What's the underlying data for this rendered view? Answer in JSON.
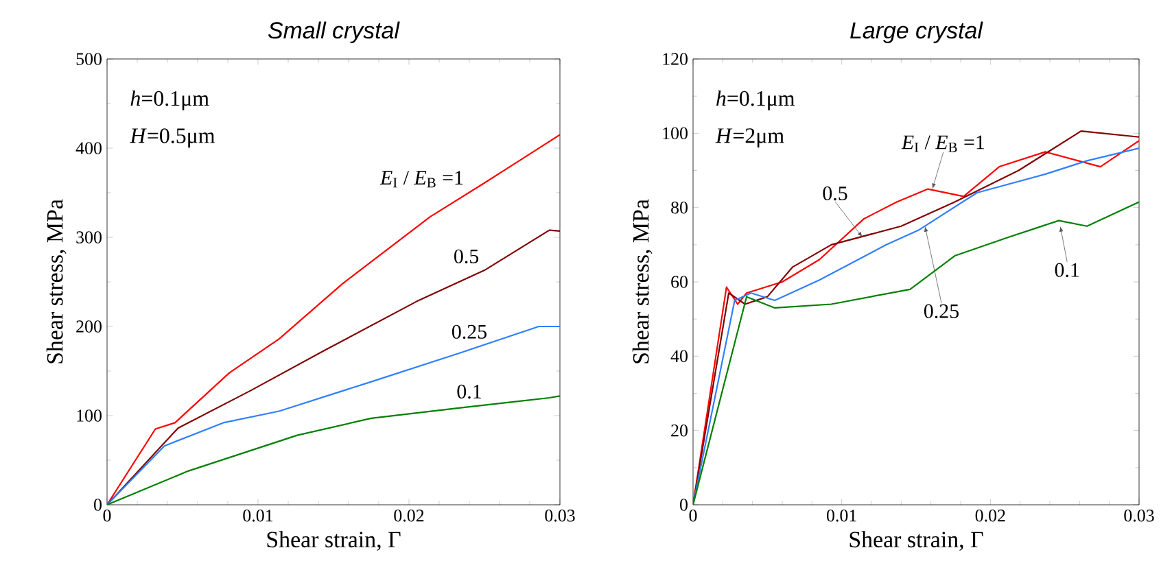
{
  "chart_data": [
    {
      "type": "line",
      "title": "Small crystal",
      "xlabel": "Shear strain,  Γ",
      "ylabel": "Shear stress, MPa",
      "xlim": [
        0,
        0.03
      ],
      "ylim": [
        0,
        500
      ],
      "xticks": [
        0,
        0.01,
        0.02,
        0.03
      ],
      "yticks": [
        0,
        100,
        200,
        300,
        400,
        500
      ],
      "marker": "none",
      "grid": false,
      "series": [
        {
          "color": "#ff0000",
          "x": [
            0,
            0.0032,
            0.0045,
            0.0081,
            0.0114,
            0.0156,
            0.0214,
            0.025,
            0.03
          ],
          "values": [
            0,
            85,
            92,
            148,
            186,
            248,
            323,
            361,
            415
          ]
        },
        {
          "color": "#800000",
          "x": [
            0,
            0.0047,
            0.0095,
            0.0145,
            0.0205,
            0.025,
            0.0293,
            0.03
          ],
          "values": [
            0,
            86,
            128,
            174,
            228,
            263,
            308,
            307
          ]
        },
        {
          "color": "#2f7fff",
          "x": [
            0,
            0.0038,
            0.0077,
            0.0114,
            0.0175,
            0.0235,
            0.0286,
            0.03
          ],
          "values": [
            0,
            66,
            92,
            105,
            138,
            171,
            200,
            200
          ]
        },
        {
          "color": "#008000",
          "x": [
            0,
            0.0054,
            0.0126,
            0.0175,
            0.0235,
            0.0293,
            0.03
          ],
          "values": [
            0,
            38,
            78,
            97,
            109,
            120,
            122
          ]
        }
      ],
      "annotations": [
        "*h*=0.1μm",
        "*H*=0.5μm",
        {
          "text": "*E*$_{I}$ / *E*$_{B}$ =1",
          "x": 0.0205,
          "y": 316
        },
        {
          "text": "0.5",
          "x": 0.0238,
          "y": 254
        },
        {
          "text": "0.25",
          "x": 0.024,
          "y": 174
        },
        {
          "text": "0.1",
          "x": 0.024,
          "y": 110
        }
      ]
    },
    {
      "type": "line",
      "title": "Large crystal",
      "xlabel": "Shear strain,  Γ",
      "ylabel": "Shear stress, MPa",
      "xlim": [
        0,
        0.03
      ],
      "ylim": [
        0,
        120
      ],
      "xticks": [
        0,
        0.01,
        0.02,
        0.03
      ],
      "yticks": [
        0,
        20,
        40,
        60,
        80,
        100,
        120
      ],
      "marker": "none",
      "grid": false,
      "series": [
        {
          "color": "#ff0000",
          "x": [
            0,
            0.00225,
            0.003,
            0.0036,
            0.006,
            0.0085,
            0.0115,
            0.0137,
            0.0158,
            0.0182,
            0.0206,
            0.0237,
            0.0274,
            0.03
          ],
          "values": [
            0,
            58.6,
            54,
            57,
            60,
            66,
            77,
            81.5,
            85,
            83,
            91,
            95,
            91,
            98
          ]
        },
        {
          "color": "#800000",
          "x": [
            0,
            0.0024,
            0.0035,
            0.005,
            0.0067,
            0.0093,
            0.014,
            0.0176,
            0.0219,
            0.0261,
            0.03
          ],
          "values": [
            0,
            57,
            54,
            56,
            64,
            70,
            75,
            81.5,
            90,
            100.6,
            99
          ]
        },
        {
          "color": "#2f7fff",
          "x": [
            0,
            0.0028,
            0.0039,
            0.0055,
            0.0085,
            0.013,
            0.0152,
            0.0191,
            0.0237,
            0.0265,
            0.03
          ],
          "values": [
            0,
            55,
            57,
            55,
            60.5,
            70,
            74,
            84,
            89,
            92.6,
            96
          ]
        },
        {
          "color": "#008000",
          "x": [
            0,
            0.0036,
            0.0055,
            0.0093,
            0.0146,
            0.0176,
            0.0212,
            0.0246,
            0.0265,
            0.03
          ],
          "values": [
            0,
            56,
            53,
            54,
            58,
            67,
            72,
            76.5,
            75,
            81.5
          ]
        }
      ],
      "annotations": [
        "*h*=0.1μm",
        "*H*=2μm",
        {
          "text": "*E*$_{I}$ / *E*$_{B}$ =1",
          "x": 0.0161,
          "y": 85
        },
        {
          "text": "0.5",
          "x": 0.0114,
          "y": 72
        },
        {
          "text": "0.25",
          "x": 0.0156,
          "y": 75
        },
        {
          "text": "0.1",
          "x": 0.0247,
          "y": 75
        }
      ]
    }
  ]
}
